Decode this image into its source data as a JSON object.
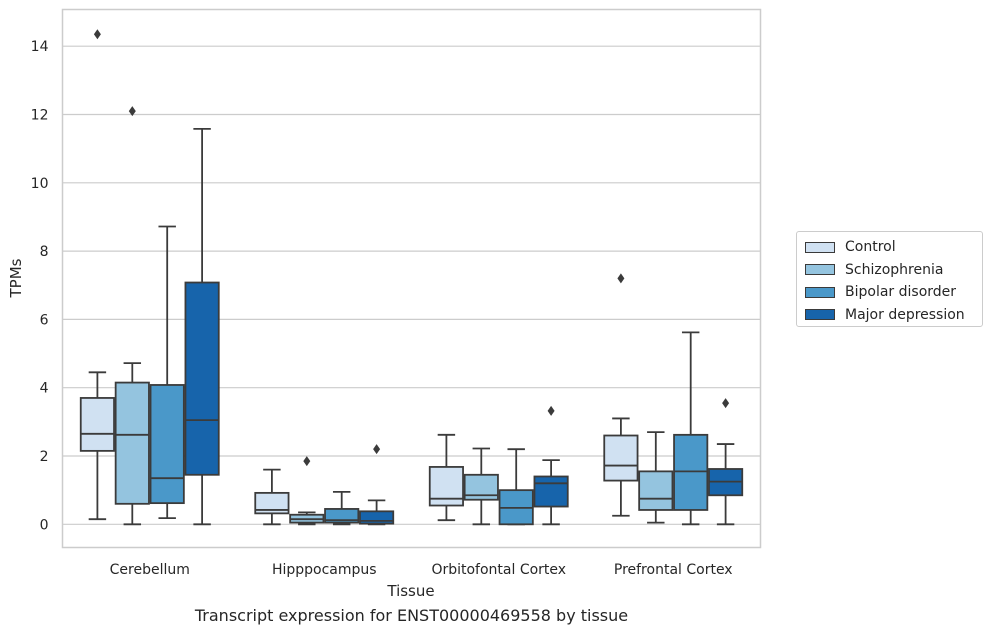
{
  "chart_data": {
    "type": "box",
    "caption": "Transcript expression for ENST00000469558 by tissue",
    "xlabel": "Tissue",
    "ylabel": "TPMs",
    "ylim": [
      -0.7,
      15.1
    ],
    "yticks": [
      0,
      2,
      4,
      6,
      8,
      10,
      12,
      14
    ],
    "grid": "horizontal",
    "legend_position": "right",
    "categories": [
      "Cerebellum",
      "Hipppocampus",
      "Orbitofontal Cortex",
      "Prefrontal Cortex"
    ],
    "series": [
      {
        "name": "Control",
        "color": "#d0e1f2",
        "boxes": [
          {
            "whislo": 0.15,
            "q1": 2.15,
            "med": 2.65,
            "q3": 3.7,
            "whishi": 4.45,
            "fliers": [
              14.35
            ]
          },
          {
            "whislo": 0.0,
            "q1": 0.32,
            "med": 0.42,
            "q3": 0.92,
            "whishi": 1.6,
            "fliers": []
          },
          {
            "whislo": 0.12,
            "q1": 0.55,
            "med": 0.75,
            "q3": 1.68,
            "whishi": 2.62,
            "fliers": []
          },
          {
            "whislo": 0.25,
            "q1": 1.28,
            "med": 1.72,
            "q3": 2.6,
            "whishi": 3.1,
            "fliers": [
              7.2
            ]
          }
        ]
      },
      {
        "name": "Schizophrenia",
        "color": "#94c4df",
        "boxes": [
          {
            "whislo": 0.0,
            "q1": 0.6,
            "med": 2.62,
            "q3": 4.15,
            "whishi": 4.72,
            "fliers": [
              12.1
            ]
          },
          {
            "whislo": 0.0,
            "q1": 0.05,
            "med": 0.15,
            "q3": 0.28,
            "whishi": 0.35,
            "fliers": [
              1.85
            ]
          },
          {
            "whislo": 0.0,
            "q1": 0.72,
            "med": 0.85,
            "q3": 1.45,
            "whishi": 2.22,
            "fliers": []
          },
          {
            "whislo": 0.05,
            "q1": 0.42,
            "med": 0.75,
            "q3": 1.55,
            "whishi": 2.7,
            "fliers": []
          }
        ]
      },
      {
        "name": "Bipolar disorder",
        "color": "#4a98c9",
        "boxes": [
          {
            "whislo": 0.18,
            "q1": 0.62,
            "med": 1.35,
            "q3": 4.08,
            "whishi": 8.72,
            "fliers": []
          },
          {
            "whislo": 0.0,
            "q1": 0.05,
            "med": 0.12,
            "q3": 0.45,
            "whishi": 0.95,
            "fliers": []
          },
          {
            "whislo": 0.0,
            "q1": 0.0,
            "med": 0.48,
            "q3": 1.0,
            "whishi": 2.2,
            "fliers": []
          },
          {
            "whislo": 0.0,
            "q1": 0.42,
            "med": 1.55,
            "q3": 2.62,
            "whishi": 5.62,
            "fliers": []
          }
        ]
      },
      {
        "name": "Major depression",
        "color": "#1764ab",
        "boxes": [
          {
            "whislo": 0.0,
            "q1": 1.45,
            "med": 3.05,
            "q3": 7.08,
            "whishi": 11.58,
            "fliers": []
          },
          {
            "whislo": 0.0,
            "q1": 0.02,
            "med": 0.1,
            "q3": 0.38,
            "whishi": 0.7,
            "fliers": [
              2.2
            ]
          },
          {
            "whislo": 0.0,
            "q1": 0.52,
            "med": 1.2,
            "q3": 1.4,
            "whishi": 1.88,
            "fliers": [
              3.32
            ]
          },
          {
            "whislo": 0.0,
            "q1": 0.85,
            "med": 1.25,
            "q3": 1.62,
            "whishi": 2.35,
            "fliers": [
              3.55
            ]
          }
        ]
      }
    ]
  }
}
